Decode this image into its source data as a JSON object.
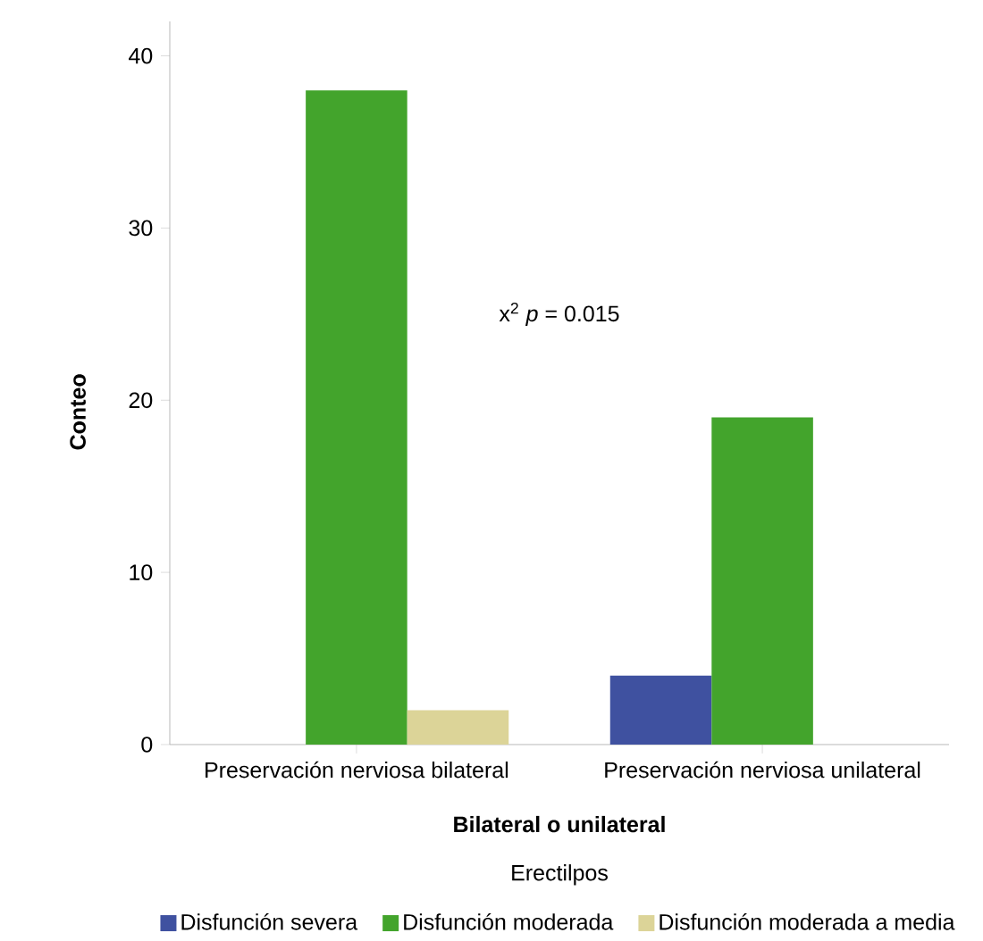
{
  "chart_data": {
    "type": "bar",
    "xlabel": "Bilateral o unilateral",
    "ylabel": "Conteo",
    "legend_title": "Erectilpos",
    "categories": [
      "Preservación nerviosa bilateral",
      "Preservación nerviosa unilateral"
    ],
    "series": [
      {
        "name": "Disfunción severa",
        "color": "#3f51a0",
        "values": [
          0,
          4
        ]
      },
      {
        "name": "Disfunción moderada",
        "color": "#43a42c",
        "values": [
          38,
          19
        ]
      },
      {
        "name": "Disfunción moderada a media",
        "color": "#dcd498",
        "values": [
          2,
          0
        ]
      }
    ],
    "ylim": [
      0,
      42
    ],
    "yticks": [
      0,
      10,
      20,
      30,
      40
    ],
    "grid": false,
    "legend": "bottom",
    "annotations": [
      "x$^{2}$ *p* = 0.015"
    ]
  }
}
